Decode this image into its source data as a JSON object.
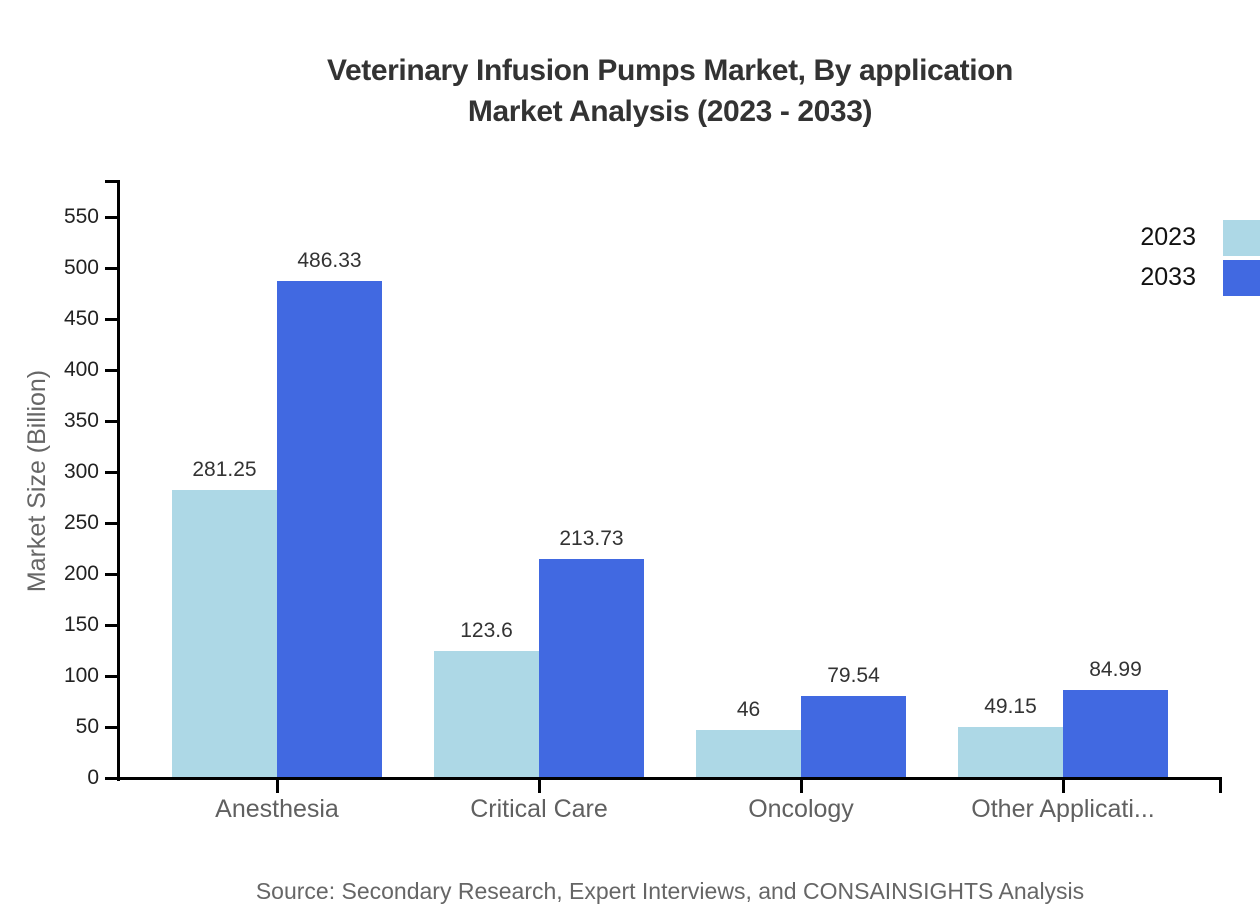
{
  "title": {
    "line1": "Veterinary Infusion Pumps Market, By application",
    "line2": "Market Analysis (2023 - 2033)"
  },
  "chart_data": {
    "type": "bar",
    "categories": [
      "Anesthesia",
      "Critical Care",
      "Oncology",
      "Other Applicati..."
    ],
    "series": [
      {
        "name": "2023",
        "color": "#ADD8E6",
        "values": [
          281.25,
          123.6,
          46,
          49.15
        ]
      },
      {
        "name": "2033",
        "color": "#4169E1",
        "values": [
          486.33,
          213.73,
          79.54,
          84.99
        ]
      }
    ],
    "title": "Veterinary Infusion Pumps Market, By application Market Analysis (2023 - 2033)",
    "xlabel": "",
    "ylabel": "Market Size (Billion)",
    "ylim": [
      0,
      550
    ],
    "ytick_step": 50,
    "yticks": [
      0,
      50,
      100,
      150,
      200,
      250,
      300,
      350,
      400,
      450,
      500,
      550
    ],
    "grid": false,
    "legend_position": "top-right",
    "axis_color": "#000000"
  },
  "source": "Source: Secondary Research, Expert Interviews, and CONSAINSIGHTS Analysis"
}
